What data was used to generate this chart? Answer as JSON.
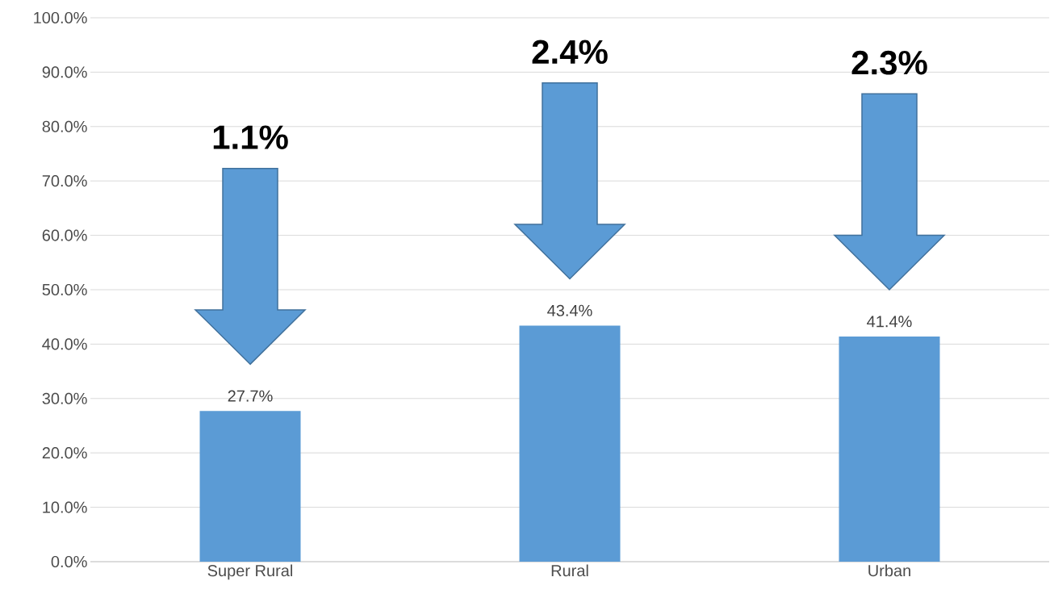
{
  "chart_data": {
    "type": "bar",
    "categories": [
      "Super Rural",
      "Rural",
      "Urban"
    ],
    "values": [
      27.7,
      43.4,
      41.4
    ],
    "value_labels": [
      "27.7%",
      "43.4%",
      "41.4%"
    ],
    "color": "#5b9bd5",
    "ylim": [
      0,
      100
    ],
    "yticks": [
      {
        "value": 0,
        "label": "0.0%"
      },
      {
        "value": 10,
        "label": "10.0%"
      },
      {
        "value": 20,
        "label": "20.0%"
      },
      {
        "value": 30,
        "label": "30.0%"
      },
      {
        "value": 40,
        "label": "40.0%"
      },
      {
        "value": 50,
        "label": "50.0%"
      },
      {
        "value": 60,
        "label": "60.0%"
      },
      {
        "value": 70,
        "label": "70.0%"
      },
      {
        "value": 80,
        "label": "80.0%"
      },
      {
        "value": 90,
        "label": "90.0%"
      },
      {
        "value": 100,
        "label": "100.0%"
      }
    ],
    "grid": "y",
    "annotations": [
      "1.1%",
      "2.4%",
      "2.3%"
    ]
  }
}
